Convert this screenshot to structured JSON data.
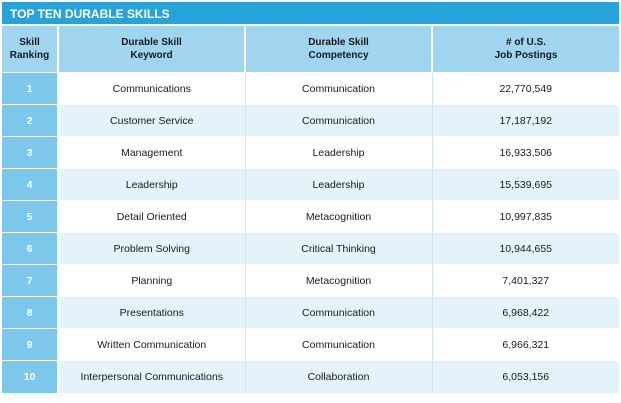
{
  "title": "TOP TEN DURABLE SKILLS",
  "headers": {
    "rank_line1": "Skill",
    "rank_line2": "Ranking",
    "keyword_line1": "Durable Skill",
    "keyword_line2": "Keyword",
    "competency_line1": "Durable Skill",
    "competency_line2": "Competency",
    "postings_line1": "# of U.S.",
    "postings_line2": "Job Postings"
  },
  "rows": [
    {
      "rank": "1",
      "keyword": "Communications",
      "competency": "Communication",
      "postings": "22,770,549"
    },
    {
      "rank": "2",
      "keyword": "Customer Service",
      "competency": "Communication",
      "postings": "17,187,192"
    },
    {
      "rank": "3",
      "keyword": "Management",
      "competency": "Leadership",
      "postings": "16,933,506"
    },
    {
      "rank": "4",
      "keyword": "Leadership",
      "competency": "Leadership",
      "postings": "15,539,695"
    },
    {
      "rank": "5",
      "keyword": "Detail Oriented",
      "competency": "Metacognition",
      "postings": "10,997,835"
    },
    {
      "rank": "6",
      "keyword": "Problem Solving",
      "competency": "Critical Thinking",
      "postings": "10,944,655"
    },
    {
      "rank": "7",
      "keyword": "Planning",
      "competency": "Metacognition",
      "postings": "7,401,327"
    },
    {
      "rank": "8",
      "keyword": "Presentations",
      "competency": "Communication",
      "postings": "6,968,422"
    },
    {
      "rank": "9",
      "keyword": "Written Communication",
      "competency": "Communication",
      "postings": "6,966,321"
    },
    {
      "rank": "10",
      "keyword": "Interpersonal Communications",
      "competency": "Collaboration",
      "postings": "6,053,156"
    }
  ],
  "colors": {
    "title_bar": "#27a3db",
    "header_bg": "#9fd5ee",
    "rank_bg": "#7cc8ea",
    "row_alt_bg": "#e4f3fa"
  }
}
